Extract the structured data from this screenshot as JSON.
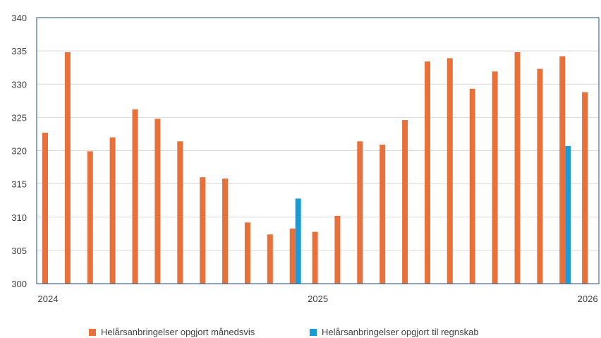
{
  "chart_data": {
    "type": "bar",
    "ylim": [
      300,
      340
    ],
    "y_ticks": [
      "300",
      "305",
      "310",
      "315",
      "320",
      "325",
      "330",
      "335",
      "340"
    ],
    "x_tick_labels": [
      {
        "label": "2024",
        "at_index": 0
      },
      {
        "label": "2025",
        "at_index": 12
      },
      {
        "label": "2026",
        "at_index": 24
      }
    ],
    "grid": true,
    "legend_position": "bottom",
    "colors": {
      "monthly": "#e8703a",
      "annual": "#1a9bd7",
      "grid": "#d9d9d9",
      "axis": "#1f4e79"
    },
    "series": [
      {
        "name": "Helårsanbringelser opgjort månedsvis",
        "values": [
          322.7,
          334.8,
          319.9,
          322.0,
          326.2,
          324.8,
          321.4,
          316.0,
          315.8,
          309.2,
          307.4,
          308.3,
          307.8,
          310.2,
          321.4,
          320.9,
          324.6,
          333.4,
          333.9,
          329.3,
          331.9,
          334.8,
          332.3,
          334.2,
          328.8
        ]
      },
      {
        "name": "Helårsanbringelser opgjort til regnskab",
        "values": [
          null,
          null,
          null,
          null,
          null,
          null,
          null,
          null,
          null,
          null,
          null,
          312.8,
          null,
          null,
          null,
          null,
          null,
          null,
          null,
          null,
          null,
          null,
          null,
          320.7,
          null
        ]
      }
    ]
  }
}
